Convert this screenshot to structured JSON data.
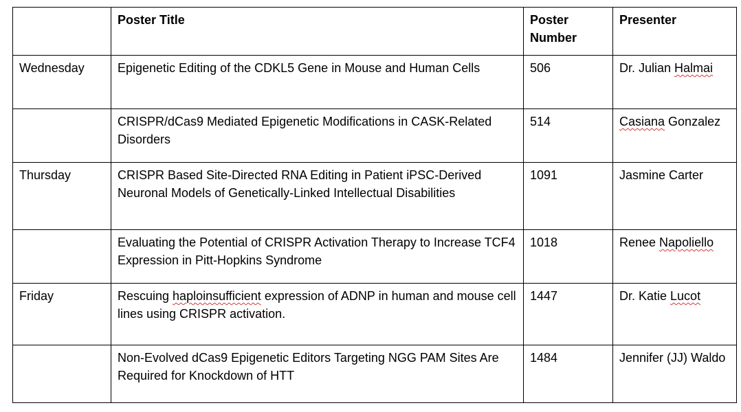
{
  "table": {
    "headers": {
      "day": "",
      "title": "Poster Title",
      "number": "Poster Number",
      "presenter": "Presenter"
    },
    "rows": [
      {
        "day": "Wednesday",
        "title": "Epigenetic Editing of the CDKL5 Gene in Mouse and Human Cells",
        "number": "506",
        "presenter_prefix": "Dr. Julian ",
        "presenter_flagged": "Halmai",
        "presenter_suffix": ""
      },
      {
        "day": "",
        "title": "CRISPR/dCas9 Mediated Epigenetic Modifications in CASK-Related Disorders",
        "number": "514",
        "presenter_prefix": "",
        "presenter_flagged": "Casiana",
        "presenter_suffix": " Gonzalez"
      },
      {
        "day": "Thursday",
        "title": "CRISPR Based Site-Directed RNA Editing in Patient iPSC-Derived Neuronal Models of Genetically-Linked Intellectual Disabilities",
        "number": "1091",
        "presenter_prefix": "Jasmine Carter",
        "presenter_flagged": "",
        "presenter_suffix": ""
      },
      {
        "day": "",
        "title": "Evaluating the Potential of CRISPR Activation Therapy to Increase TCF4 Expression in Pitt-Hopkins Syndrome",
        "number": "1018",
        "presenter_prefix": "Renee ",
        "presenter_flagged": "Napoliello",
        "presenter_suffix": ""
      },
      {
        "day": "Friday",
        "title_prefix": "Rescuing ",
        "title_flagged": "haploinsufficient",
        "title_suffix": " expression of ADNP in human and mouse cell lines using CRISPR activation.",
        "number": "1447",
        "presenter_prefix": "Dr. Katie ",
        "presenter_flagged": "Lucot",
        "presenter_suffix": ""
      },
      {
        "day": "",
        "title": "Non-Evolved dCas9 Epigenetic Editors Targeting NGG PAM Sites Are Required for Knockdown of HTT",
        "number": "1484",
        "presenter_prefix": "Jennifer (JJ) Waldo",
        "presenter_flagged": "",
        "presenter_suffix": ""
      }
    ]
  },
  "colors": {
    "border": "#000000",
    "spellcheck_underline": "#d23a3a"
  }
}
